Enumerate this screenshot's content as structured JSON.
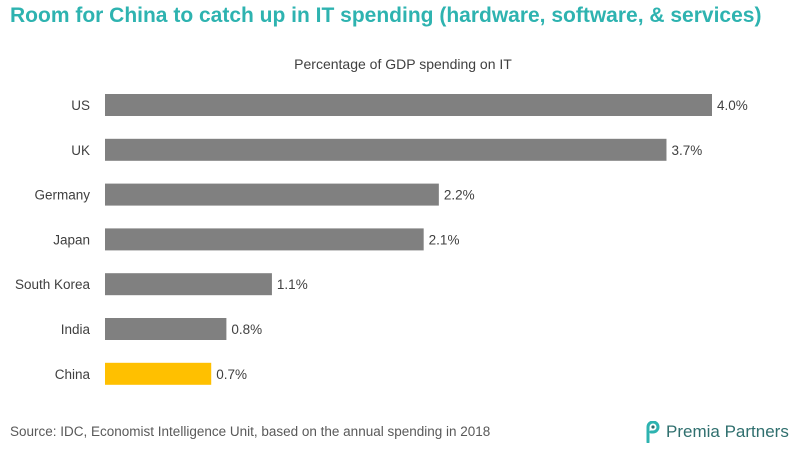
{
  "header": {
    "title": "Room for China to catch up in IT spending (hardware, software, & services)"
  },
  "chart_data": {
    "type": "bar",
    "orientation": "horizontal",
    "subtitle": "Percentage of GDP spending on IT",
    "categories": [
      "US",
      "UK",
      "Germany",
      "Japan",
      "South Korea",
      "India",
      "China"
    ],
    "values": [
      4.0,
      3.7,
      2.2,
      2.1,
      1.1,
      0.8,
      0.7
    ],
    "value_labels": [
      "4.0%",
      "3.7%",
      "2.2%",
      "2.1%",
      "1.1%",
      "0.8%",
      "0.7%"
    ],
    "xlim": [
      0,
      4.0
    ],
    "grid": false,
    "colors": {
      "default": "#808080",
      "highlight": "#ffc000"
    },
    "highlight_category": "China"
  },
  "footer": {
    "source": "Source: IDC, Economist Intelligence Unit, based on the annual spending in 2018",
    "logo_text": "Premia Partners"
  },
  "brand": {
    "accent": "#2eb3b0",
    "logo_color": "#2f6f6e"
  }
}
